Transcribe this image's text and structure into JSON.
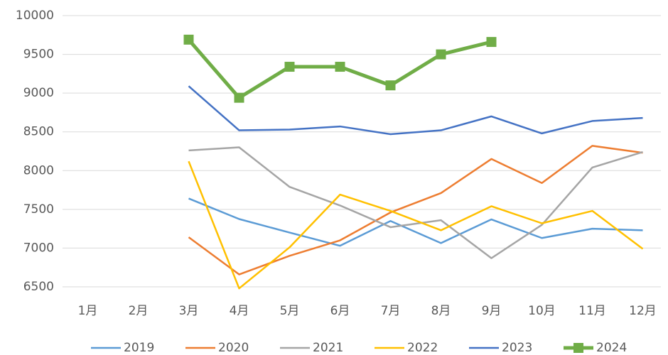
{
  "chart_data": {
    "type": "line",
    "categories": [
      "1月",
      "2月",
      "3月",
      "4月",
      "5月",
      "6月",
      "7月",
      "8月",
      "9月",
      "10月",
      "11月",
      "12月"
    ],
    "series": [
      {
        "name": "2019",
        "color": "#5b9bd5",
        "values": [
          null,
          null,
          7640,
          7375,
          7200,
          7030,
          7350,
          7065,
          7370,
          7130,
          7250,
          7230
        ]
      },
      {
        "name": "2020",
        "color": "#ed7d31",
        "values": [
          null,
          null,
          7140,
          6660,
          6900,
          7100,
          7460,
          7710,
          8150,
          7840,
          8320,
          8230
        ]
      },
      {
        "name": "2021",
        "color": "#a5a5a5",
        "values": [
          null,
          null,
          8260,
          8300,
          7790,
          7550,
          7270,
          7360,
          6870,
          7300,
          8040,
          8240
        ]
      },
      {
        "name": "2022",
        "color": "#ffc000",
        "values": [
          null,
          null,
          8120,
          6480,
          7010,
          7690,
          7480,
          7230,
          7540,
          7320,
          7480,
          6990
        ]
      },
      {
        "name": "2023",
        "color": "#4472c4",
        "values": [
          null,
          null,
          9090,
          8520,
          8530,
          8570,
          8470,
          8520,
          8700,
          8480,
          8640,
          8680
        ]
      },
      {
        "name": "2024",
        "color": "#70ad47",
        "marker": "square",
        "values": [
          null,
          null,
          9690,
          8940,
          9340,
          9340,
          9100,
          9500,
          9660,
          null,
          null,
          null
        ]
      }
    ],
    "ylim": [
      6500,
      10000
    ],
    "yticks": [
      6500,
      7000,
      7500,
      8000,
      8500,
      9000,
      9500,
      10000
    ],
    "grid": true,
    "legend": "bottom"
  }
}
